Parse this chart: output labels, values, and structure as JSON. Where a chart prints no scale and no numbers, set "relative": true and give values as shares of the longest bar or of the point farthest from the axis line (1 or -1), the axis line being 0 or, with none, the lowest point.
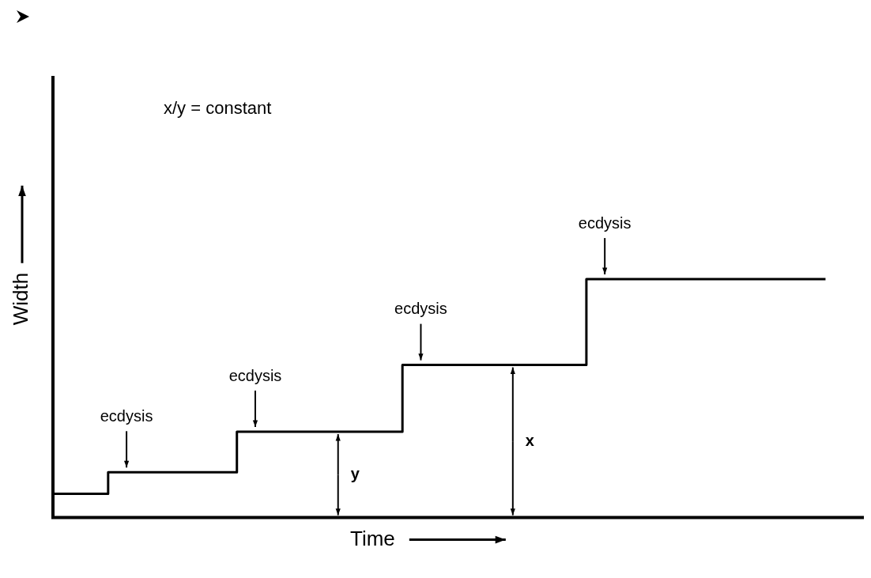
{
  "chart_data": {
    "type": "step",
    "relative": true,
    "xlabel": "Time",
    "ylabel": "Width",
    "grid": false,
    "marker": "none",
    "categories": [
      null,
      null,
      null,
      null,
      null,
      null,
      null,
      null,
      null,
      null,
      null,
      null,
      null,
      null,
      null,
      null,
      null,
      null,
      null,
      null,
      null,
      null,
      null,
      null,
      null,
      null,
      null,
      null,
      null,
      null,
      null,
      null,
      null,
      null,
      null,
      null,
      null,
      null,
      null,
      null,
      null,
      null,
      null,
      null,
      null
    ],
    "series": [
      {
        "color": "#000000",
        "values": [
          0.1,
          0.1,
          0.1,
          0.1,
          0.19,
          0.19,
          0.19,
          0.19,
          0.19,
          0.19,
          0.19,
          0.36,
          0.36,
          0.36,
          0.36,
          0.36,
          0.36,
          0.36,
          0.36,
          0.36,
          0.64,
          0.64,
          0.64,
          0.64,
          0.64,
          0.64,
          0.64,
          0.64,
          0.64,
          0.64,
          1,
          1,
          1,
          1,
          1,
          1,
          1,
          1,
          1,
          1,
          1,
          1,
          1,
          null,
          null
        ]
      }
    ],
    "annotations": [
      "x/y = constant",
      {
        "text": "ecdysis",
        "y": 0.19
      },
      {
        "text": "ecdysis",
        "y": 0.36
      },
      {
        "text": "ecdysis",
        "y": 0.64
      },
      {
        "text": "ecdysis",
        "y": 1
      },
      "y",
      "x"
    ]
  }
}
